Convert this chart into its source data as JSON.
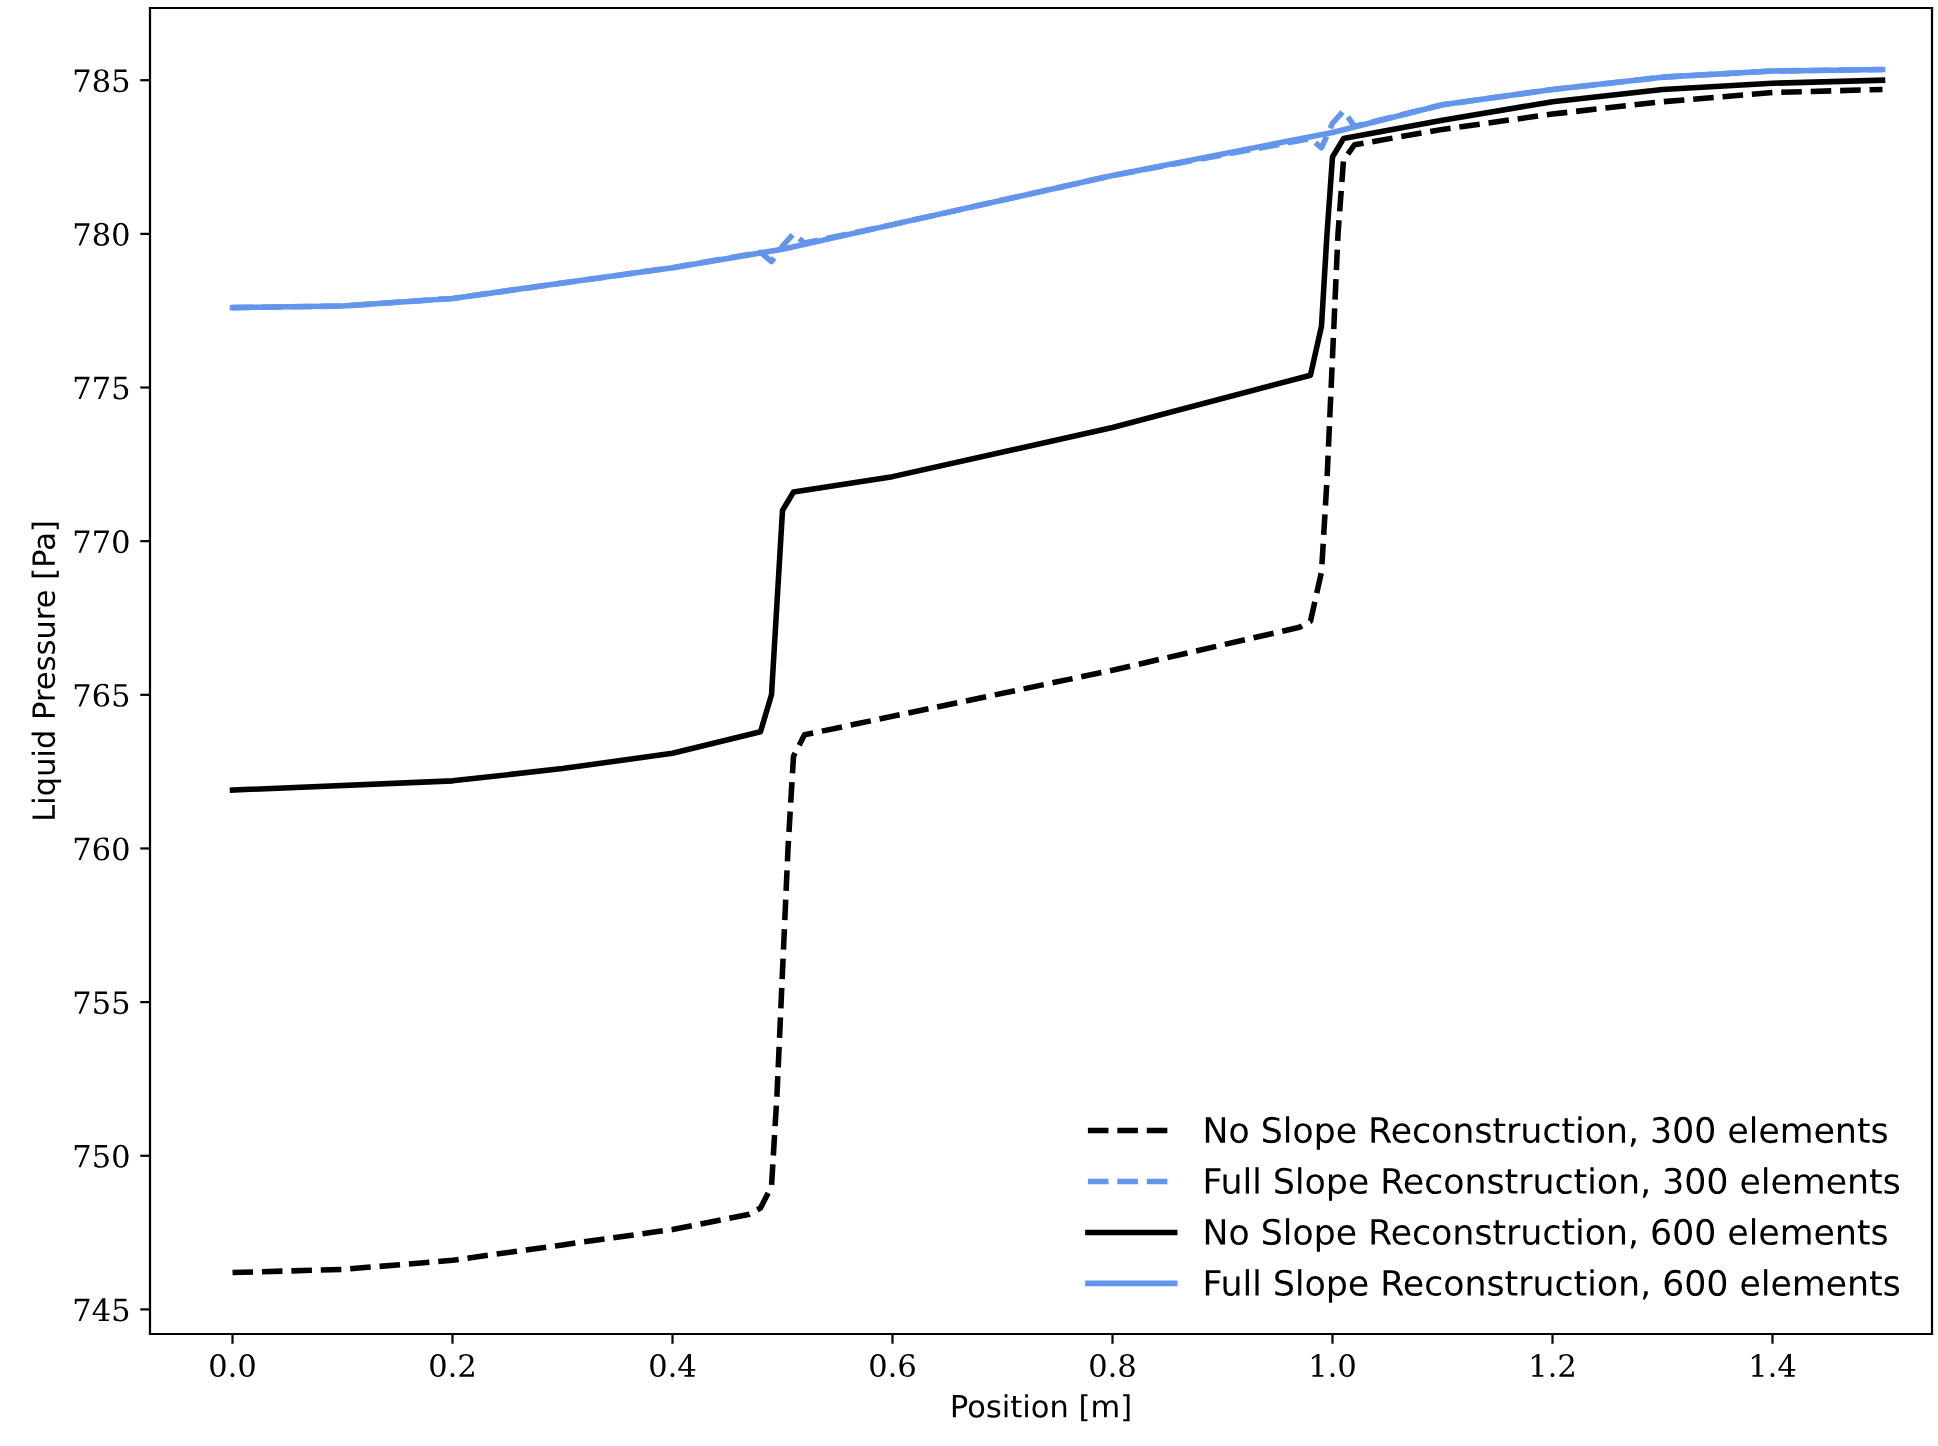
{
  "chart_data": {
    "type": "line",
    "xlabel": "Position [m]",
    "ylabel": "Liquid Pressure [Pa]",
    "xlim": [
      -0.075,
      1.545
    ],
    "ylim": [
      744.2,
      787.35
    ],
    "xticks": [
      {
        "value": 0,
        "label": "0.0"
      },
      0.2,
      0.4,
      0.6,
      0.8,
      {
        "value": 1,
        "label": "1.0"
      },
      1.2,
      1.4
    ],
    "yticks": [
      745,
      750,
      755,
      760,
      765,
      770,
      775,
      780,
      785
    ],
    "grid": false,
    "legend": "bottom right",
    "marker": "none",
    "series": [
      {
        "name": "No Slope Reconstruction, 300 elements",
        "color": "#000000",
        "line_style": "dashed",
        "x": [
          0,
          0.1,
          0.2,
          0.3,
          0.4,
          0.47,
          0.48,
          0.49,
          0.495,
          0.5,
          0.505,
          0.51,
          0.52,
          0.6,
          0.8,
          0.97,
          0.98,
          0.99,
          0.995,
          1.0,
          1.005,
          1.01,
          1.02,
          1.1,
          1.2,
          1.3,
          1.4,
          1.5
        ],
        "values": [
          746.2,
          746.3,
          746.6,
          747.1,
          747.6,
          748.1,
          748.3,
          749,
          752,
          756,
          760,
          763,
          763.7,
          764.3,
          765.8,
          767.2,
          767.4,
          769,
          772,
          776,
          780,
          782.4,
          782.9,
          783.4,
          783.9,
          784.3,
          784.6,
          784.7
        ]
      },
      {
        "name": "Full Slope Reconstruction, 300 elements",
        "color": "#6495ed",
        "line_style": "dashed",
        "x": [
          0,
          0.1,
          0.2,
          0.3,
          0.4,
          0.48,
          0.49,
          0.5,
          0.51,
          0.52,
          0.6,
          0.8,
          0.98,
          0.99,
          1.0,
          1.01,
          1.02,
          1.1,
          1.2,
          1.3,
          1.4,
          1.5
        ],
        "values": [
          777.6,
          777.65,
          777.9,
          778.4,
          778.9,
          779.4,
          779.1,
          779.6,
          780.0,
          779.7,
          780.3,
          781.9,
          783.1,
          782.8,
          783.6,
          784.0,
          783.5,
          784.2,
          784.7,
          785.1,
          785.3,
          785.35
        ]
      },
      {
        "name": "No Slope Reconstruction, 600 elements",
        "color": "#000000",
        "line_style": "solid",
        "x": [
          0,
          0.2,
          0.3,
          0.4,
          0.48,
          0.49,
          0.495,
          0.5,
          0.51,
          0.6,
          0.8,
          0.98,
          0.99,
          0.995,
          1.0,
          1.01,
          1.1,
          1.2,
          1.3,
          1.4,
          1.5
        ],
        "values": [
          761.9,
          762.2,
          762.6,
          763.1,
          763.8,
          765,
          768,
          771,
          771.6,
          772.1,
          773.7,
          775.4,
          777,
          780,
          782.5,
          783.1,
          783.7,
          784.3,
          784.7,
          784.9,
          785.0
        ]
      },
      {
        "name": "Full Slope Reconstruction, 600 elements",
        "color": "#6495ed",
        "line_style": "solid",
        "x": [
          0,
          0.1,
          0.2,
          0.3,
          0.4,
          0.5,
          0.6,
          0.8,
          1.0,
          1.1,
          1.2,
          1.3,
          1.4,
          1.5
        ],
        "values": [
          777.6,
          777.65,
          777.9,
          778.4,
          778.9,
          779.5,
          780.3,
          781.9,
          783.3,
          784.2,
          784.7,
          785.1,
          785.3,
          785.35
        ]
      }
    ]
  }
}
